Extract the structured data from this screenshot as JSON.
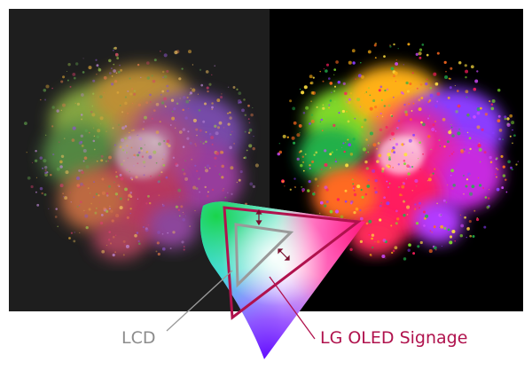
{
  "labels": {
    "lcd": "LCD",
    "oled": "LG OLED Signage"
  },
  "colors": {
    "background": "#ffffff",
    "left_panel": "#1e1e1e",
    "right_panel": "#000000",
    "lcd_label": "#8c8c8c",
    "oled_label": "#b0124d",
    "lcd_triangle": "#9a9a9a",
    "oled_triangle": "#b0124d"
  }
}
